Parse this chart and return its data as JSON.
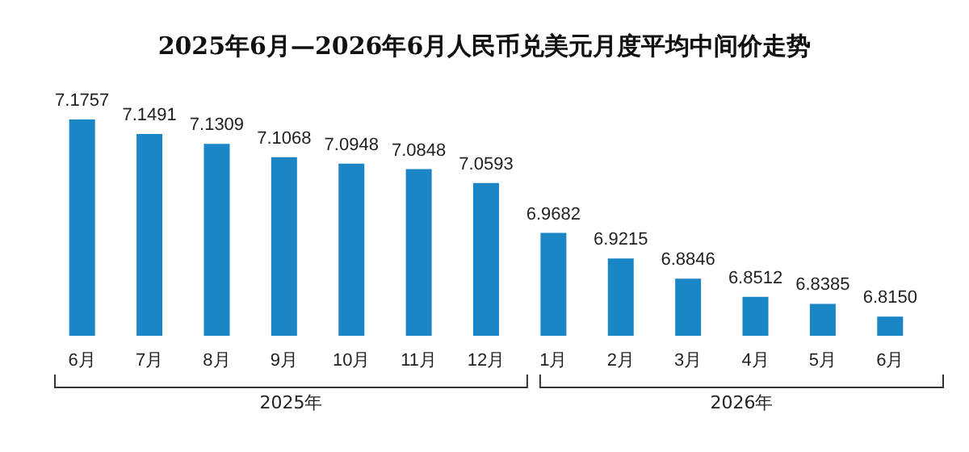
{
  "chart_data": {
    "type": "bar",
    "title": "2025年6月—2026年6月人民币兑美元月度平均中间价走势",
    "categories": [
      "6月",
      "7月",
      "8月",
      "9月",
      "10月",
      "11月",
      "12月",
      "1月",
      "2月",
      "3月",
      "4月",
      "5月",
      "6月"
    ],
    "values": [
      7.1757,
      7.1491,
      7.1309,
      7.1068,
      7.0948,
      7.0848,
      7.0593,
      6.9682,
      6.9215,
      6.8846,
      6.8512,
      6.8385,
      6.815
    ],
    "value_labels": [
      "7.1757",
      "7.1491",
      "7.1309",
      "7.1068",
      "7.0948",
      "7.0848",
      "7.0593",
      "6.9682",
      "6.9215",
      "6.8846",
      "6.8512",
      "6.8385",
      "6.8150"
    ],
    "color": "#1a86c6",
    "ylim": [
      6.78,
      7.1757
    ],
    "annotations": [
      "2025年",
      "2026年"
    ]
  }
}
